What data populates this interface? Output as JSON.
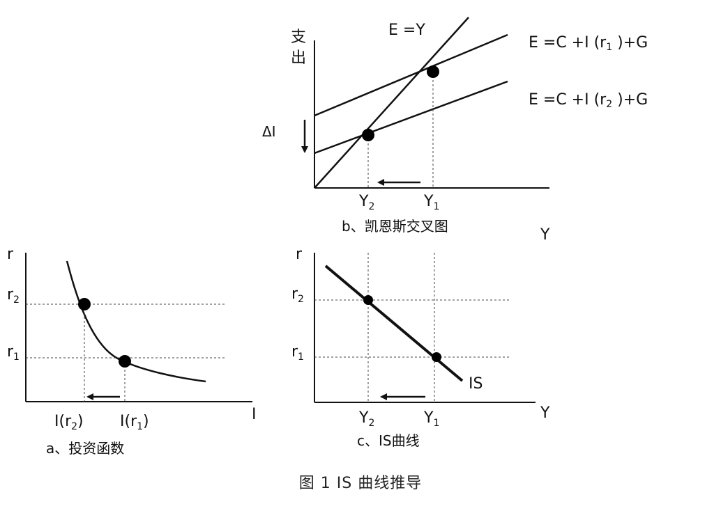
{
  "caption": "图 1   IS 曲线推导",
  "panel_b": {
    "y_axis_label_1": "支",
    "y_axis_label_2": "出",
    "line_identity_label": "E =Y",
    "line_r1_label": "E =C +I (r",
    "line_r1_sub": "1",
    "line_r1_tail": " )+G",
    "line_r2_label": "E =C +I (r",
    "line_r2_sub": "2",
    "line_r2_tail": " )+G",
    "delta_label": "ΔI",
    "x_tick_y2": "Y",
    "x_tick_y2_sub": "2",
    "x_tick_y1": "Y",
    "x_tick_y1_sub": "1",
    "x_axis_label": "Y",
    "title": "b、凯恩斯交叉图"
  },
  "panel_a": {
    "y_axis_label": "r",
    "tick_r2": "r",
    "tick_r2_sub": "2",
    "tick_r1": "r",
    "tick_r1_sub": "1",
    "x_tick_ir2": "I(r",
    "x_tick_ir2_sub": "2",
    "x_tick_ir2_tail": ")",
    "x_tick_ir1": "I(r",
    "x_tick_ir1_sub": "1",
    "x_tick_ir1_tail": ")",
    "x_axis_label": "I",
    "title": "a、投资函数"
  },
  "panel_c": {
    "y_axis_label": "r",
    "tick_r2": "r",
    "tick_r2_sub": "2",
    "tick_r1": "r",
    "tick_r1_sub": "1",
    "curve_label": "IS",
    "x_tick_y2": "Y",
    "x_tick_y2_sub": "2",
    "x_tick_y1": "Y",
    "x_tick_y1_sub": "1",
    "x_axis_label": "Y",
    "title": "c、IS曲线"
  }
}
